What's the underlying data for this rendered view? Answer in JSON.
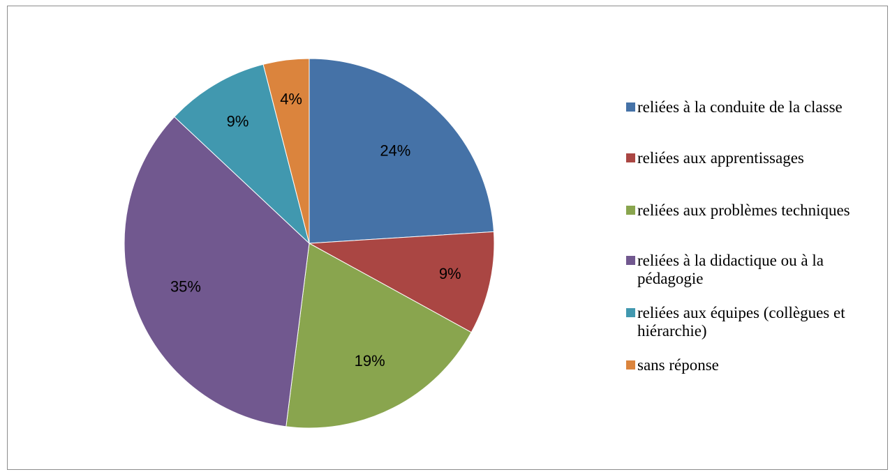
{
  "chart_data": {
    "type": "pie",
    "title": "",
    "legend_position": "right",
    "slices": [
      {
        "name": "reliées à la conduite de la classe",
        "value": 24,
        "label": "24%",
        "color": "#4572A7"
      },
      {
        "name": "reliées aux apprentissages",
        "value": 9,
        "label": "9%",
        "color": "#AA4643"
      },
      {
        "name": "reliées aux problèmes techniques",
        "value": 19,
        "label": "19%",
        "color": "#89A54E"
      },
      {
        "name": "reliées à la didactique ou à la pédagogie",
        "value": 35,
        "label": "35%",
        "color": "#71588F"
      },
      {
        "name": "reliées aux équipes (collègues et hiérarchie)",
        "value": 9,
        "label": "9%",
        "color": "#4198AF"
      },
      {
        "name": "sans réponse",
        "value": 4,
        "label": "4%",
        "color": "#DB843D"
      }
    ]
  }
}
